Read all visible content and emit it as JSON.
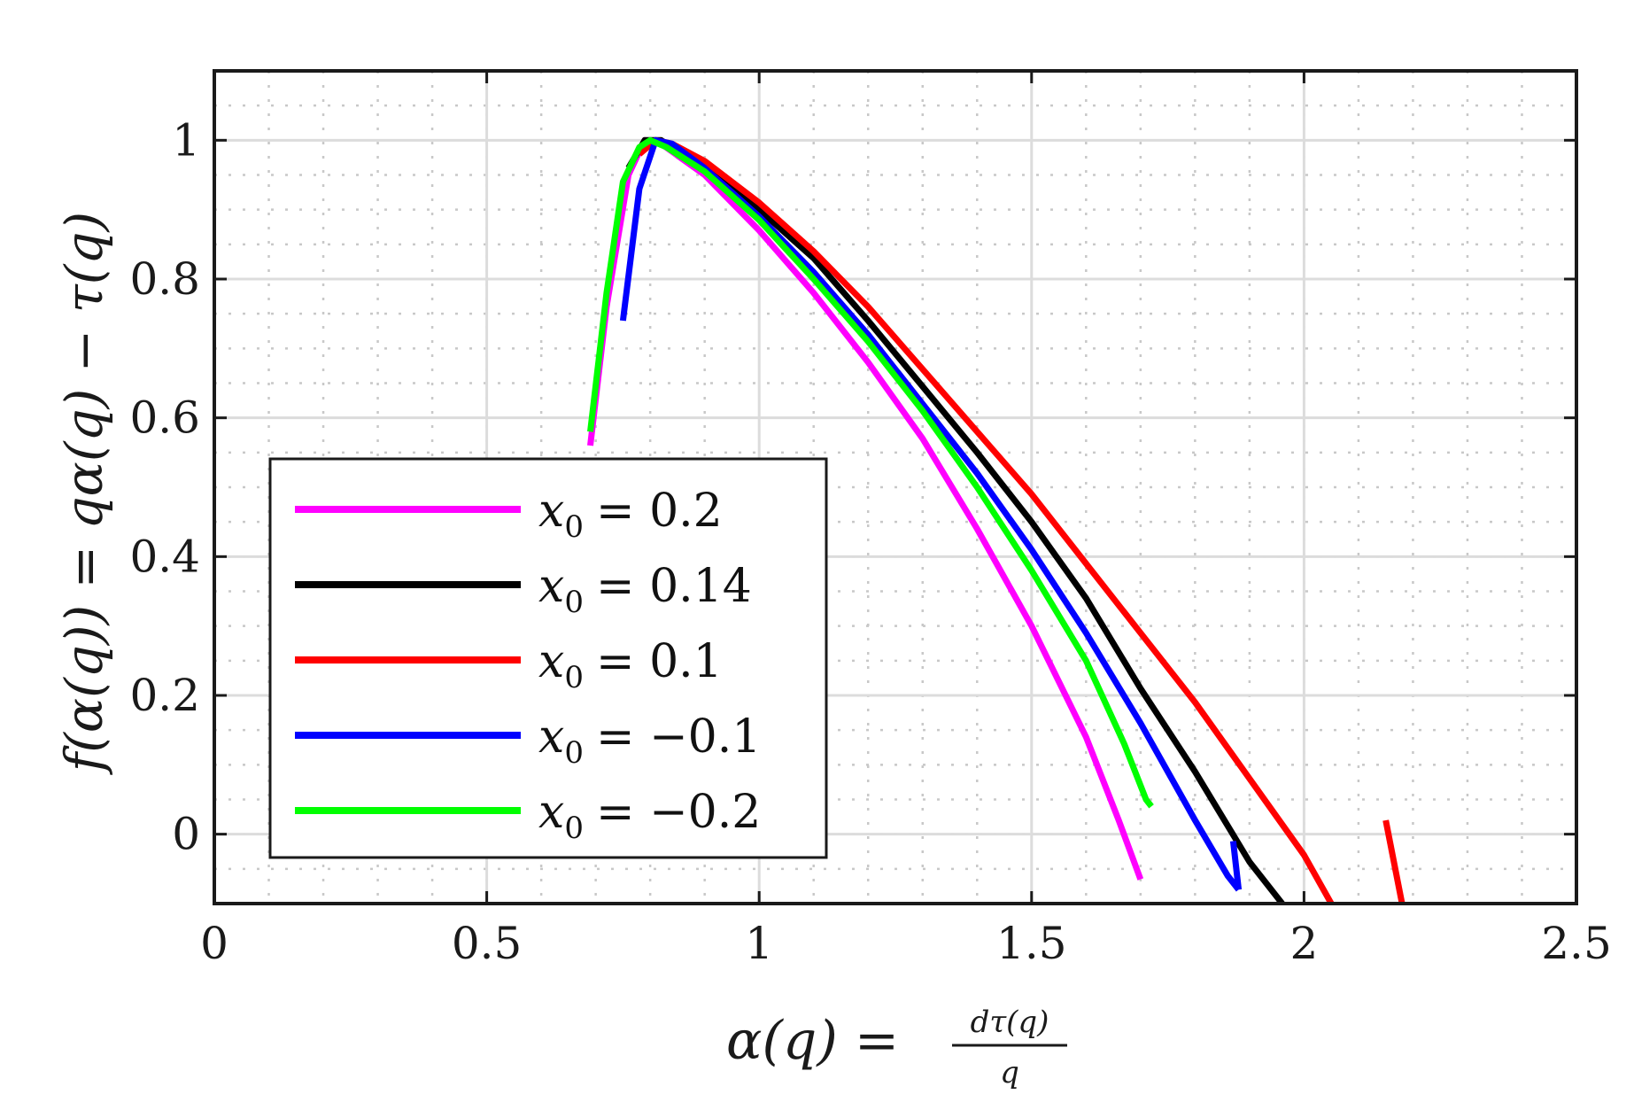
{
  "chart_data": {
    "type": "line",
    "title": "",
    "xlabel_prefix": "α(q) =",
    "xlabel_frac_num": "dτ(q)",
    "xlabel_frac_den": "q",
    "ylabel": "f(α(q)) = qα(q) − τ(q)",
    "xlim": [
      0,
      2.5
    ],
    "ylim": [
      -0.1,
      1.1
    ],
    "x_ticks": [
      {
        "value": 0,
        "label": "0"
      },
      {
        "value": 0.5,
        "label": "0.5"
      },
      {
        "value": 1,
        "label": "1"
      },
      {
        "value": 1.5,
        "label": "1.5"
      },
      {
        "value": 2,
        "label": "2"
      },
      {
        "value": 2.5,
        "label": "2.5"
      }
    ],
    "y_ticks": [
      {
        "value": 0,
        "label": "0"
      },
      {
        "value": 0.2,
        "label": "0.2"
      },
      {
        "value": 0.4,
        "label": "0.4"
      },
      {
        "value": 0.6,
        "label": "0.6"
      },
      {
        "value": 0.8,
        "label": "0.8"
      },
      {
        "value": 1,
        "label": "1"
      }
    ],
    "grid": true,
    "legend_position": "bottom-left",
    "series": [
      {
        "name": "x0 = 0.2",
        "legend_var": "x",
        "legend_sub": "0",
        "legend_value": "= 0.2",
        "color": "#ff00ff",
        "segments": [
          [
            [
              0.69,
              0.56
            ],
            [
              0.72,
              0.76
            ],
            [
              0.76,
              0.95
            ],
            [
              0.79,
              1.0
            ],
            [
              0.82,
              0.995
            ],
            [
              0.9,
              0.95
            ],
            [
              1.0,
              0.87
            ],
            [
              1.1,
              0.78
            ],
            [
              1.2,
              0.68
            ],
            [
              1.3,
              0.57
            ],
            [
              1.4,
              0.44
            ],
            [
              1.5,
              0.3
            ],
            [
              1.6,
              0.14
            ],
            [
              1.66,
              0.02
            ],
            [
              1.7,
              -0.065
            ]
          ]
        ]
      },
      {
        "name": "x0 = 0.14",
        "legend_var": "x",
        "legend_sub": "0",
        "legend_value": "= 0.14",
        "color": "#000000",
        "segments": [
          [
            [
              0.76,
              0.96
            ],
            [
              0.79,
              1.0
            ],
            [
              0.82,
              1.0
            ],
            [
              0.9,
              0.96
            ],
            [
              1.0,
              0.9
            ],
            [
              1.1,
              0.83
            ],
            [
              1.2,
              0.74
            ],
            [
              1.3,
              0.645
            ],
            [
              1.4,
              0.55
            ],
            [
              1.5,
              0.45
            ],
            [
              1.6,
              0.34
            ],
            [
              1.7,
              0.21
            ],
            [
              1.8,
              0.09
            ],
            [
              1.9,
              -0.04
            ],
            [
              1.96,
              -0.1
            ]
          ]
        ]
      },
      {
        "name": "x0 = 0.1",
        "legend_var": "x",
        "legend_sub": "0",
        "legend_value": "= 0.1",
        "color": "#ff0000",
        "segments": [
          [
            [
              0.78,
              0.98
            ],
            [
              0.81,
              1.0
            ],
            [
              0.84,
              0.995
            ],
            [
              0.9,
              0.97
            ],
            [
              1.0,
              0.91
            ],
            [
              1.1,
              0.84
            ],
            [
              1.2,
              0.76
            ],
            [
              1.3,
              0.67
            ],
            [
              1.4,
              0.58
            ],
            [
              1.5,
              0.49
            ],
            [
              1.6,
              0.39
            ],
            [
              1.7,
              0.29
            ],
            [
              1.8,
              0.19
            ],
            [
              1.9,
              0.08
            ],
            [
              2.0,
              -0.03
            ],
            [
              2.05,
              -0.1
            ]
          ],
          [
            [
              2.15,
              0.02
            ],
            [
              2.18,
              -0.1
            ]
          ]
        ]
      },
      {
        "name": "x0 = −0.1",
        "legend_var": "x",
        "legend_sub": "0",
        "legend_value": "= −0.1",
        "color": "#0000ff",
        "segments": [
          [
            [
              0.75,
              0.74
            ],
            [
              0.78,
              0.93
            ],
            [
              0.81,
              1.0
            ],
            [
              0.84,
              0.995
            ],
            [
              0.9,
              0.96
            ],
            [
              1.0,
              0.89
            ],
            [
              1.1,
              0.81
            ],
            [
              1.2,
              0.72
            ],
            [
              1.3,
              0.62
            ],
            [
              1.4,
              0.52
            ],
            [
              1.5,
              0.41
            ],
            [
              1.6,
              0.29
            ],
            [
              1.7,
              0.16
            ],
            [
              1.8,
              0.02
            ],
            [
              1.86,
              -0.06
            ],
            [
              1.88,
              -0.08
            ]
          ],
          [
            [
              1.87,
              -0.01
            ],
            [
              1.88,
              -0.08
            ]
          ]
        ]
      },
      {
        "name": "x0 = −0.2",
        "legend_var": "x",
        "legend_sub": "0",
        "legend_value": "= −0.2",
        "color": "#00ff00",
        "segments": [
          [
            [
              0.69,
              0.58
            ],
            [
              0.72,
              0.78
            ],
            [
              0.75,
              0.94
            ],
            [
              0.78,
              0.99
            ],
            [
              0.8,
              1.0
            ],
            [
              0.83,
              0.99
            ],
            [
              0.9,
              0.955
            ],
            [
              1.0,
              0.885
            ],
            [
              1.1,
              0.8
            ],
            [
              1.2,
              0.71
            ],
            [
              1.3,
              0.61
            ],
            [
              1.4,
              0.5
            ],
            [
              1.5,
              0.38
            ],
            [
              1.6,
              0.25
            ],
            [
              1.67,
              0.13
            ],
            [
              1.71,
              0.05
            ],
            [
              1.72,
              0.04
            ]
          ]
        ]
      }
    ]
  }
}
